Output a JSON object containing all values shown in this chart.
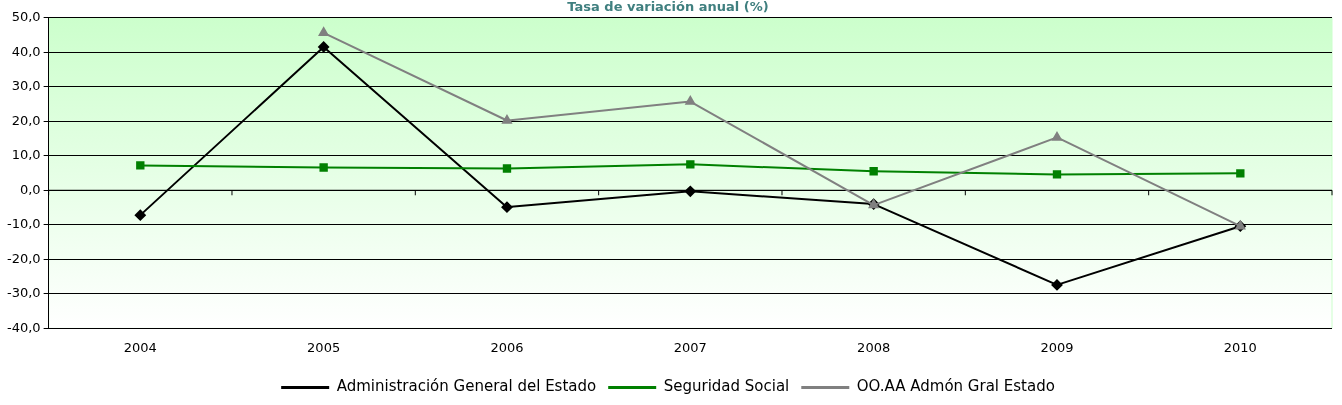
{
  "chart_data": {
    "type": "line",
    "title": "Tasa de variación anual (%)",
    "categories": [
      "2004",
      "2005",
      "2006",
      "2007",
      "2008",
      "2009",
      "2010"
    ],
    "series": [
      {
        "name": "Administración General del Estado",
        "color": "#000000",
        "marker": "diamond",
        "values": [
          -7.2,
          41.5,
          -4.9,
          -0.3,
          -4.0,
          -27.4,
          -10.4
        ]
      },
      {
        "name": "Seguridad Social",
        "color": "#008000",
        "marker": "square",
        "values": [
          7.2,
          6.6,
          6.3,
          7.5,
          5.5,
          4.6,
          4.9
        ]
      },
      {
        "name": "OO.AA Admón Gral Estado",
        "color": "#808080",
        "marker": "triangle",
        "values": [
          null,
          45.6,
          20.2,
          25.7,
          -4.3,
          15.3,
          -10.4
        ]
      }
    ],
    "ylim": [
      -40,
      50
    ],
    "yticks": [
      {
        "value": -40,
        "label": "-40,0"
      },
      {
        "value": -30,
        "label": "-30,0"
      },
      {
        "value": -20,
        "label": "-20,0"
      },
      {
        "value": -10,
        "label": "-10,0"
      },
      {
        "value": 0,
        "label": "0,0"
      },
      {
        "value": 10,
        "label": "10,0"
      },
      {
        "value": 20,
        "label": "20,0"
      },
      {
        "value": 30,
        "label": "30,0"
      },
      {
        "value": 40,
        "label": "40,0"
      },
      {
        "value": 50,
        "label": "50,0"
      }
    ],
    "grid": "y",
    "legend": "bottom"
  }
}
